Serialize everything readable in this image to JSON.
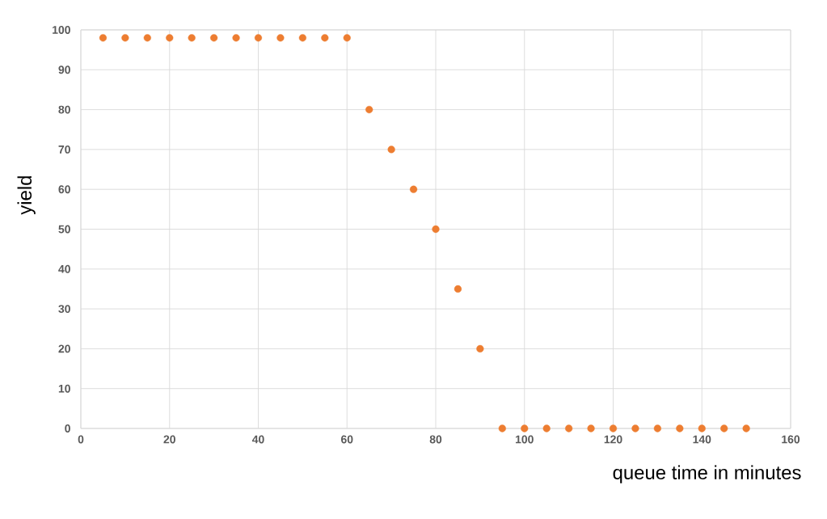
{
  "chart_data": {
    "type": "scatter",
    "xlabel": "queue time in minutes",
    "ylabel": "yield",
    "x": [
      5,
      10,
      15,
      20,
      25,
      30,
      35,
      40,
      45,
      50,
      55,
      60,
      65,
      70,
      75,
      80,
      85,
      90,
      95,
      100,
      105,
      110,
      115,
      120,
      125,
      130,
      135,
      140,
      145,
      150
    ],
    "values": [
      98,
      98,
      98,
      98,
      98,
      98,
      98,
      98,
      98,
      98,
      98,
      98,
      80,
      70,
      60,
      50,
      35,
      20,
      0,
      0,
      0,
      0,
      0,
      0,
      0,
      0,
      0,
      0,
      0,
      0
    ],
    "color": "#ed7d31",
    "marker": "circle",
    "xlim": [
      0,
      160
    ],
    "xticks": [
      0,
      20,
      40,
      60,
      80,
      100,
      120,
      140,
      160
    ],
    "ylim": [
      0,
      100
    ],
    "yticks": [
      0,
      10,
      20,
      30,
      40,
      50,
      60,
      70,
      80,
      90,
      100
    ],
    "grid": true
  }
}
